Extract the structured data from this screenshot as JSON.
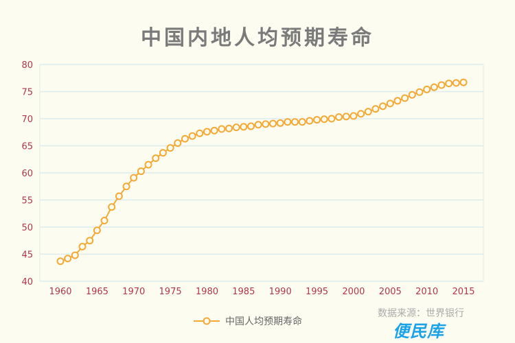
{
  "chart_data": {
    "type": "line",
    "title": "中国内地人均预期寿命",
    "xlabel": "",
    "ylabel": "",
    "ylim": [
      40,
      80
    ],
    "yticks": [
      40,
      45,
      50,
      55,
      60,
      65,
      70,
      75,
      80
    ],
    "xticks": [
      1960,
      1965,
      1970,
      1975,
      1980,
      1985,
      1990,
      1995,
      2000,
      2005,
      2010,
      2015
    ],
    "grid": true,
    "legend_position": "bottom",
    "series": [
      {
        "name": "中国人均预期寿命",
        "color": "#f5a833",
        "x": [
          1960,
          1961,
          1962,
          1963,
          1964,
          1965,
          1966,
          1967,
          1968,
          1969,
          1970,
          1971,
          1972,
          1973,
          1974,
          1975,
          1976,
          1977,
          1978,
          1979,
          1980,
          1981,
          1982,
          1983,
          1984,
          1985,
          1986,
          1987,
          1988,
          1989,
          1990,
          1991,
          1992,
          1993,
          1994,
          1995,
          1996,
          1997,
          1998,
          1999,
          2000,
          2001,
          2002,
          2003,
          2004,
          2005,
          2006,
          2007,
          2008,
          2009,
          2010,
          2011,
          2012,
          2013,
          2014,
          2015
        ],
        "values": [
          43.7,
          44.2,
          44.8,
          46.4,
          47.5,
          49.4,
          51.2,
          53.7,
          55.7,
          57.5,
          59.1,
          60.3,
          61.5,
          62.7,
          63.7,
          64.6,
          65.5,
          66.3,
          66.8,
          67.3,
          67.6,
          67.8,
          68.1,
          68.2,
          68.4,
          68.5,
          68.6,
          68.9,
          69.0,
          69.1,
          69.2,
          69.4,
          69.4,
          69.4,
          69.6,
          69.8,
          69.9,
          70.0,
          70.3,
          70.4,
          70.5,
          70.9,
          71.3,
          71.8,
          72.3,
          72.8,
          73.3,
          73.8,
          74.4,
          74.9,
          75.4,
          75.8,
          76.2,
          76.5,
          76.6,
          76.7
        ]
      }
    ]
  },
  "source": "数据来源：世界银行",
  "watermark": "便民库",
  "colors": {
    "tick": "#b0364a",
    "grid": "#dcecec",
    "line": "#f5a833"
  }
}
